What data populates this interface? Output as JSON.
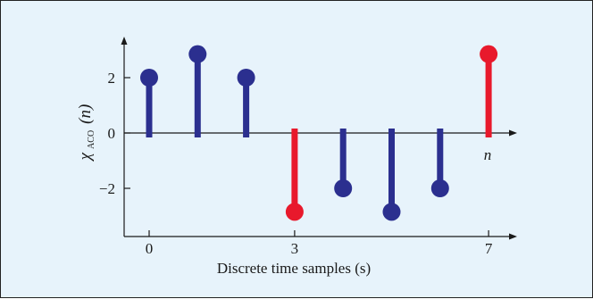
{
  "chart_data": {
    "type": "stem",
    "xlabel": "Discrete time samples (s)",
    "ylabel": {
      "symbol": "χ",
      "subscript": "ACO",
      "argument": "(n)"
    },
    "axis_end_label": "n",
    "x_ticks": [
      0,
      3,
      7
    ],
    "x_tick_labels": [
      "0",
      "3",
      "7"
    ],
    "y_ticks": [
      2,
      0,
      -2
    ],
    "y_tick_labels": [
      "2",
      "0",
      "−2"
    ],
    "xlim": [
      -0.5,
      7.6
    ],
    "ylim": [
      -3.7,
      3.5
    ],
    "grid": false,
    "colors": {
      "blue": "#2b2f8f",
      "red": "#e8192c",
      "frame_bg": "#e7f3fb",
      "axis": "#1a1a1a"
    },
    "points": [
      {
        "x": 0,
        "y": 2,
        "color": "blue"
      },
      {
        "x": 1,
        "y": 2.85,
        "color": "blue"
      },
      {
        "x": 2,
        "y": 2,
        "color": "blue"
      },
      {
        "x": 3,
        "y": -2.85,
        "color": "red"
      },
      {
        "x": 4,
        "y": -2,
        "color": "blue"
      },
      {
        "x": 5,
        "y": -2.85,
        "color": "blue"
      },
      {
        "x": 6,
        "y": -2,
        "color": "blue"
      },
      {
        "x": 7,
        "y": 2.85,
        "color": "red"
      }
    ]
  }
}
